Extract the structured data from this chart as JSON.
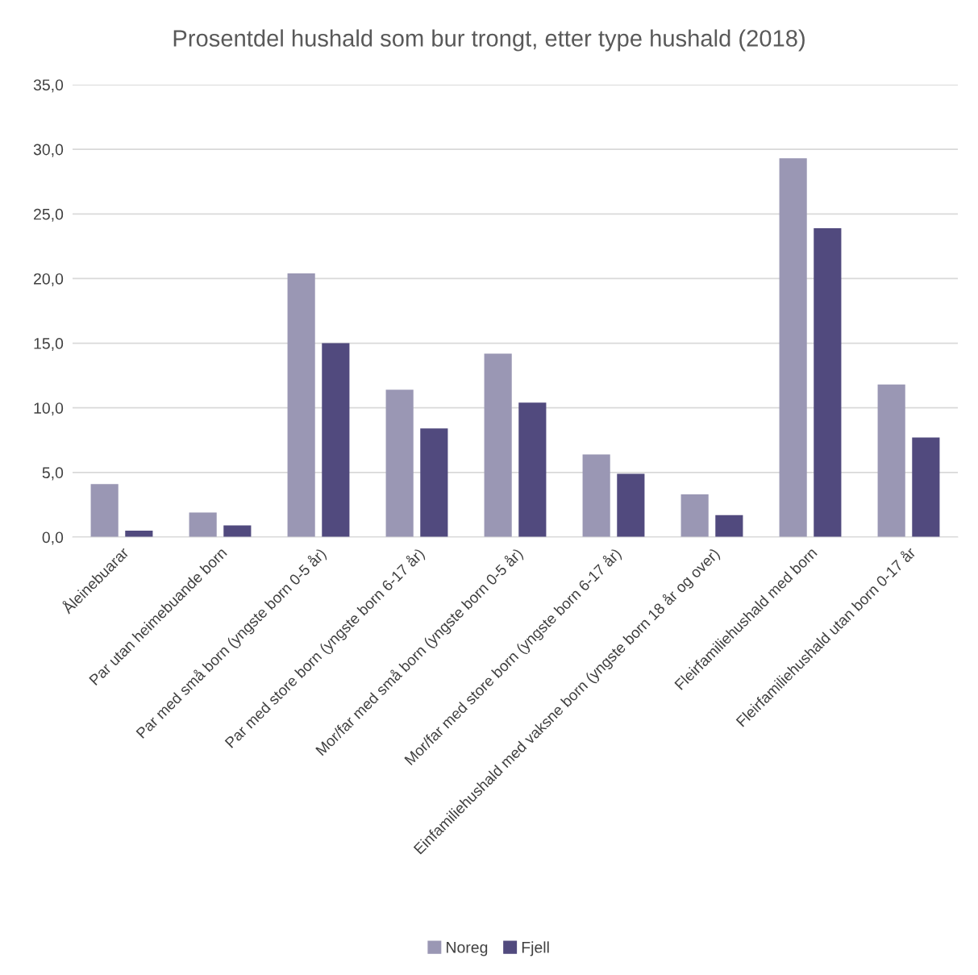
{
  "chart_data": {
    "type": "bar",
    "title": "Prosentdel hushald som bur trongt, etter type hushald (2018)",
    "categories": [
      "Åleinebuarar",
      "Par utan heimebuande born",
      "Par med små born (yngste born 0-5 år)",
      "Par med store born (yngste born 6-17 år)",
      "Mor/far med små born (yngste born 0-5 år)",
      "Mor/far med store born (yngste born 6-17 år)",
      "Einfamiliehushald med vaksne born (yngste born 18 år og over)",
      "Fleirfamiliehushald med born",
      "Fleirfamiliehushald utan born 0-17 år"
    ],
    "series": [
      {
        "name": "Noreg",
        "color": "#9a97b4",
        "values": [
          4.1,
          1.9,
          20.4,
          11.4,
          14.2,
          6.4,
          3.3,
          29.3,
          11.8
        ]
      },
      {
        "name": "Fjell",
        "color": "#514a7e",
        "values": [
          0.5,
          0.9,
          15.0,
          8.4,
          10.4,
          4.9,
          1.7,
          23.9,
          7.7
        ]
      }
    ],
    "ylim": [
      0,
      35
    ],
    "yticks": [
      {
        "value": 0,
        "label": "0,0"
      },
      {
        "value": 5,
        "label": "5,0"
      },
      {
        "value": 10,
        "label": "10,0"
      },
      {
        "value": 15,
        "label": "15,0"
      },
      {
        "value": 20,
        "label": "20,0"
      },
      {
        "value": 25,
        "label": "25,0"
      },
      {
        "value": 30,
        "label": "30,0"
      },
      {
        "value": 35,
        "label": "35,0"
      }
    ],
    "grid": "y",
    "legend": "bottom"
  }
}
